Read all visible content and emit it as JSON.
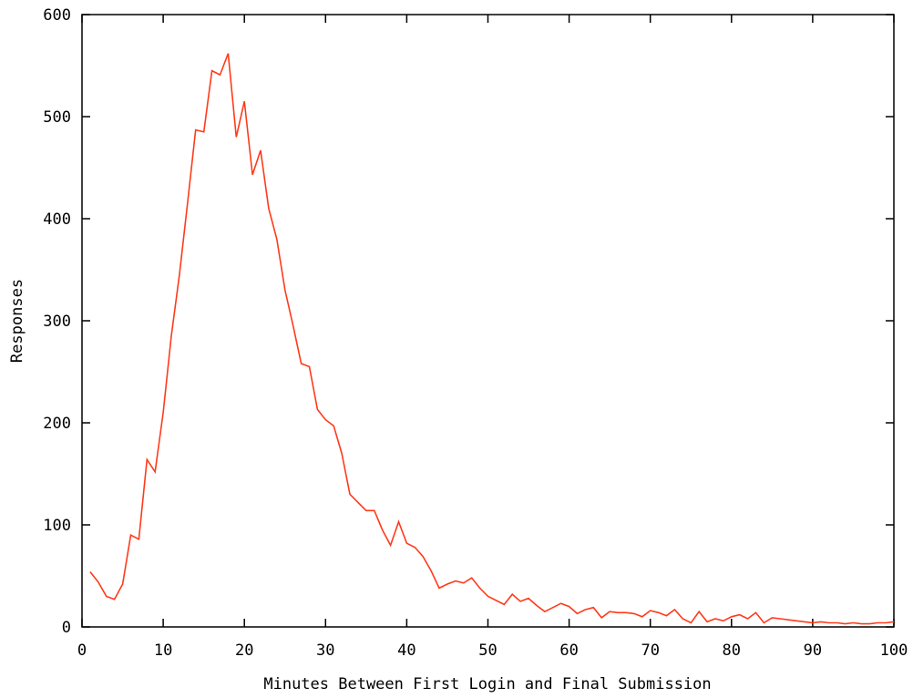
{
  "chart_data": {
    "type": "line",
    "title": "",
    "xlabel": "Minutes Between First Login and Final Submission",
    "ylabel": "Responses",
    "xlim": [
      0,
      100
    ],
    "ylim": [
      0,
      600
    ],
    "xticks": [
      0,
      10,
      20,
      30,
      40,
      50,
      60,
      70,
      80,
      90,
      100
    ],
    "yticks": [
      0,
      100,
      200,
      300,
      400,
      500,
      600
    ],
    "grid": false,
    "legend": "none",
    "series_color": "#ff3a1a",
    "series": [
      {
        "x": [
          1,
          2,
          3,
          4,
          5,
          6,
          7,
          8,
          9,
          10,
          11,
          12,
          13,
          14,
          15,
          16,
          17,
          18,
          19,
          20,
          21,
          22,
          23,
          24,
          25,
          26,
          27,
          28,
          29,
          30,
          31,
          32,
          33,
          34,
          35,
          36,
          37,
          38,
          39,
          40,
          41,
          42,
          43,
          44,
          45,
          46,
          47,
          48,
          49,
          50,
          51,
          52,
          53,
          54,
          55,
          56,
          57,
          58,
          59,
          60,
          61,
          62,
          63,
          64,
          65,
          66,
          67,
          68,
          69,
          70,
          71,
          72,
          73,
          74,
          75,
          76,
          77,
          78,
          79,
          80,
          81,
          82,
          83,
          84,
          85,
          86,
          87,
          88,
          89,
          90,
          91,
          92,
          93,
          94,
          95,
          96,
          97,
          98,
          99,
          100
        ],
        "values": [
          54,
          44,
          30,
          27,
          42,
          90,
          86,
          164,
          152,
          210,
          285,
          345,
          415,
          487,
          485,
          545,
          541,
          562,
          480,
          515,
          443,
          467,
          410,
          380,
          330,
          295,
          258,
          255,
          213,
          203,
          197,
          170,
          130,
          122,
          114,
          114,
          95,
          80,
          103,
          82,
          78,
          69,
          55,
          38,
          42,
          45,
          43,
          48,
          38,
          30,
          26,
          22,
          32,
          25,
          28,
          21,
          15,
          19,
          23,
          20,
          13,
          17,
          19,
          9,
          15,
          14,
          14,
          13,
          10,
          16,
          14,
          11,
          17,
          8,
          4,
          15,
          5,
          8,
          6,
          10,
          12,
          8,
          14,
          4,
          9,
          8,
          7,
          6,
          5,
          4,
          5,
          4,
          4,
          3,
          4,
          3,
          3,
          4,
          4,
          5
        ]
      }
    ]
  }
}
